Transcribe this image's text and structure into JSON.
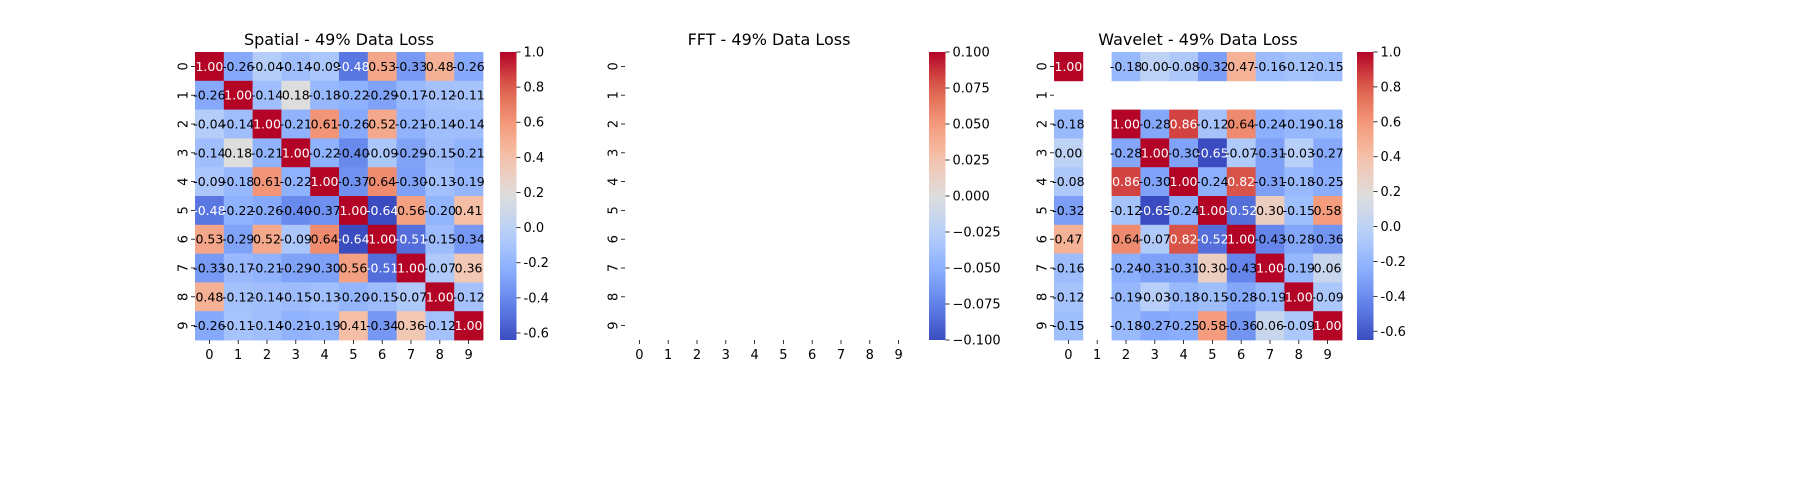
{
  "chart_data": [
    {
      "type": "heatmap",
      "title": "Spatial - 49% Data Loss",
      "x_ticks": [
        "0",
        "1",
        "2",
        "3",
        "4",
        "5",
        "6",
        "7",
        "8",
        "9"
      ],
      "y_ticks": [
        "0",
        "1",
        "2",
        "3",
        "4",
        "5",
        "6",
        "7",
        "8",
        "9"
      ],
      "colormap": "coolwarm",
      "vmin": -0.64,
      "vmax": 1.0,
      "colorbar_ticks": [
        "-0.6",
        "-0.4",
        "-0.2",
        "0.0",
        "0.2",
        "0.4",
        "0.6",
        "0.8",
        "1.0"
      ],
      "values": [
        [
          1.0,
          -0.26,
          -0.04,
          -0.14,
          -0.09,
          -0.48,
          0.53,
          -0.33,
          0.48,
          -0.26
        ],
        [
          -0.26,
          1.0,
          -0.14,
          0.18,
          -0.18,
          -0.22,
          -0.29,
          -0.17,
          -0.12,
          -0.11
        ],
        [
          -0.04,
          -0.14,
          1.0,
          -0.21,
          0.61,
          -0.26,
          0.52,
          -0.21,
          -0.14,
          -0.14
        ],
        [
          -0.14,
          0.18,
          -0.21,
          1.0,
          -0.22,
          -0.4,
          -0.09,
          -0.29,
          -0.15,
          -0.21
        ],
        [
          -0.09,
          -0.18,
          0.61,
          -0.22,
          1.0,
          -0.37,
          0.64,
          -0.3,
          -0.13,
          -0.19
        ],
        [
          -0.48,
          -0.22,
          -0.26,
          -0.4,
          -0.37,
          1.0,
          -0.64,
          0.56,
          -0.2,
          0.41
        ],
        [
          0.53,
          -0.29,
          0.52,
          -0.09,
          0.64,
          -0.64,
          1.0,
          -0.51,
          -0.15,
          -0.34
        ],
        [
          -0.33,
          -0.17,
          -0.21,
          -0.29,
          -0.3,
          0.56,
          -0.51,
          1.0,
          -0.07,
          0.36
        ],
        [
          0.48,
          -0.12,
          -0.14,
          -0.15,
          -0.13,
          -0.2,
          -0.15,
          -0.07,
          1.0,
          -0.12
        ],
        [
          -0.26,
          -0.11,
          -0.14,
          -0.21,
          -0.19,
          0.41,
          -0.34,
          0.36,
          -0.12,
          1.0
        ]
      ]
    },
    {
      "type": "heatmap",
      "title": "FFT - 49% Data Loss",
      "x_ticks": [
        "0",
        "1",
        "2",
        "3",
        "4",
        "5",
        "6",
        "7",
        "8",
        "9"
      ],
      "y_ticks": [
        "0",
        "1",
        "2",
        "3",
        "4",
        "5",
        "6",
        "7",
        "8",
        "9"
      ],
      "colormap": "coolwarm",
      "vmin": -0.1,
      "vmax": 0.1,
      "colorbar_ticks": [
        "−0.100",
        "−0.075",
        "−0.050",
        "−0.025",
        "0.000",
        "0.025",
        "0.050",
        "0.075",
        "0.100"
      ],
      "values": [
        [
          null,
          null,
          null,
          null,
          null,
          null,
          null,
          null,
          null,
          null
        ],
        [
          null,
          null,
          null,
          null,
          null,
          null,
          null,
          null,
          null,
          null
        ],
        [
          null,
          null,
          null,
          null,
          null,
          null,
          null,
          null,
          null,
          null
        ],
        [
          null,
          null,
          null,
          null,
          null,
          null,
          null,
          null,
          null,
          null
        ],
        [
          null,
          null,
          null,
          null,
          null,
          null,
          null,
          null,
          null,
          null
        ],
        [
          null,
          null,
          null,
          null,
          null,
          null,
          null,
          null,
          null,
          null
        ],
        [
          null,
          null,
          null,
          null,
          null,
          null,
          null,
          null,
          null,
          null
        ],
        [
          null,
          null,
          null,
          null,
          null,
          null,
          null,
          null,
          null,
          null
        ],
        [
          null,
          null,
          null,
          null,
          null,
          null,
          null,
          null,
          null,
          null
        ],
        [
          null,
          null,
          null,
          null,
          null,
          null,
          null,
          null,
          null,
          null
        ]
      ]
    },
    {
      "type": "heatmap",
      "title": "Wavelet - 49% Data Loss",
      "x_ticks": [
        "0",
        "1",
        "2",
        "3",
        "4",
        "5",
        "6",
        "7",
        "8",
        "9"
      ],
      "y_ticks": [
        "0",
        "1",
        "2",
        "3",
        "4",
        "5",
        "6",
        "7",
        "8",
        "9"
      ],
      "colormap": "coolwarm",
      "vmin": -0.65,
      "vmax": 1.0,
      "colorbar_ticks": [
        "-0.6",
        "-0.4",
        "-0.2",
        "0.0",
        "0.2",
        "0.4",
        "0.6",
        "0.8",
        "1.0"
      ],
      "values": [
        [
          1.0,
          null,
          -0.18,
          0.0,
          -0.08,
          -0.32,
          0.47,
          -0.16,
          -0.12,
          -0.15
        ],
        [
          null,
          null,
          null,
          null,
          null,
          null,
          null,
          null,
          null,
          null
        ],
        [
          -0.18,
          null,
          1.0,
          -0.28,
          0.86,
          -0.12,
          0.64,
          -0.24,
          -0.19,
          -0.18
        ],
        [
          0.0,
          null,
          -0.28,
          1.0,
          -0.3,
          -0.65,
          -0.07,
          -0.31,
          -0.03,
          -0.27
        ],
        [
          -0.08,
          null,
          0.86,
          -0.3,
          1.0,
          -0.24,
          0.82,
          -0.31,
          -0.18,
          -0.25
        ],
        [
          -0.32,
          null,
          -0.12,
          -0.65,
          -0.24,
          1.0,
          -0.52,
          0.3,
          -0.15,
          0.58
        ],
        [
          0.47,
          null,
          0.64,
          -0.07,
          0.82,
          -0.52,
          1.0,
          -0.43,
          -0.28,
          -0.36
        ],
        [
          -0.16,
          null,
          -0.24,
          -0.31,
          -0.31,
          0.3,
          -0.43,
          1.0,
          -0.19,
          0.06
        ],
        [
          -0.12,
          null,
          -0.19,
          -0.03,
          -0.18,
          -0.15,
          -0.28,
          -0.19,
          1.0,
          -0.09
        ],
        [
          -0.15,
          null,
          -0.18,
          -0.27,
          -0.25,
          0.58,
          -0.36,
          0.06,
          -0.09,
          1.0
        ]
      ]
    }
  ]
}
